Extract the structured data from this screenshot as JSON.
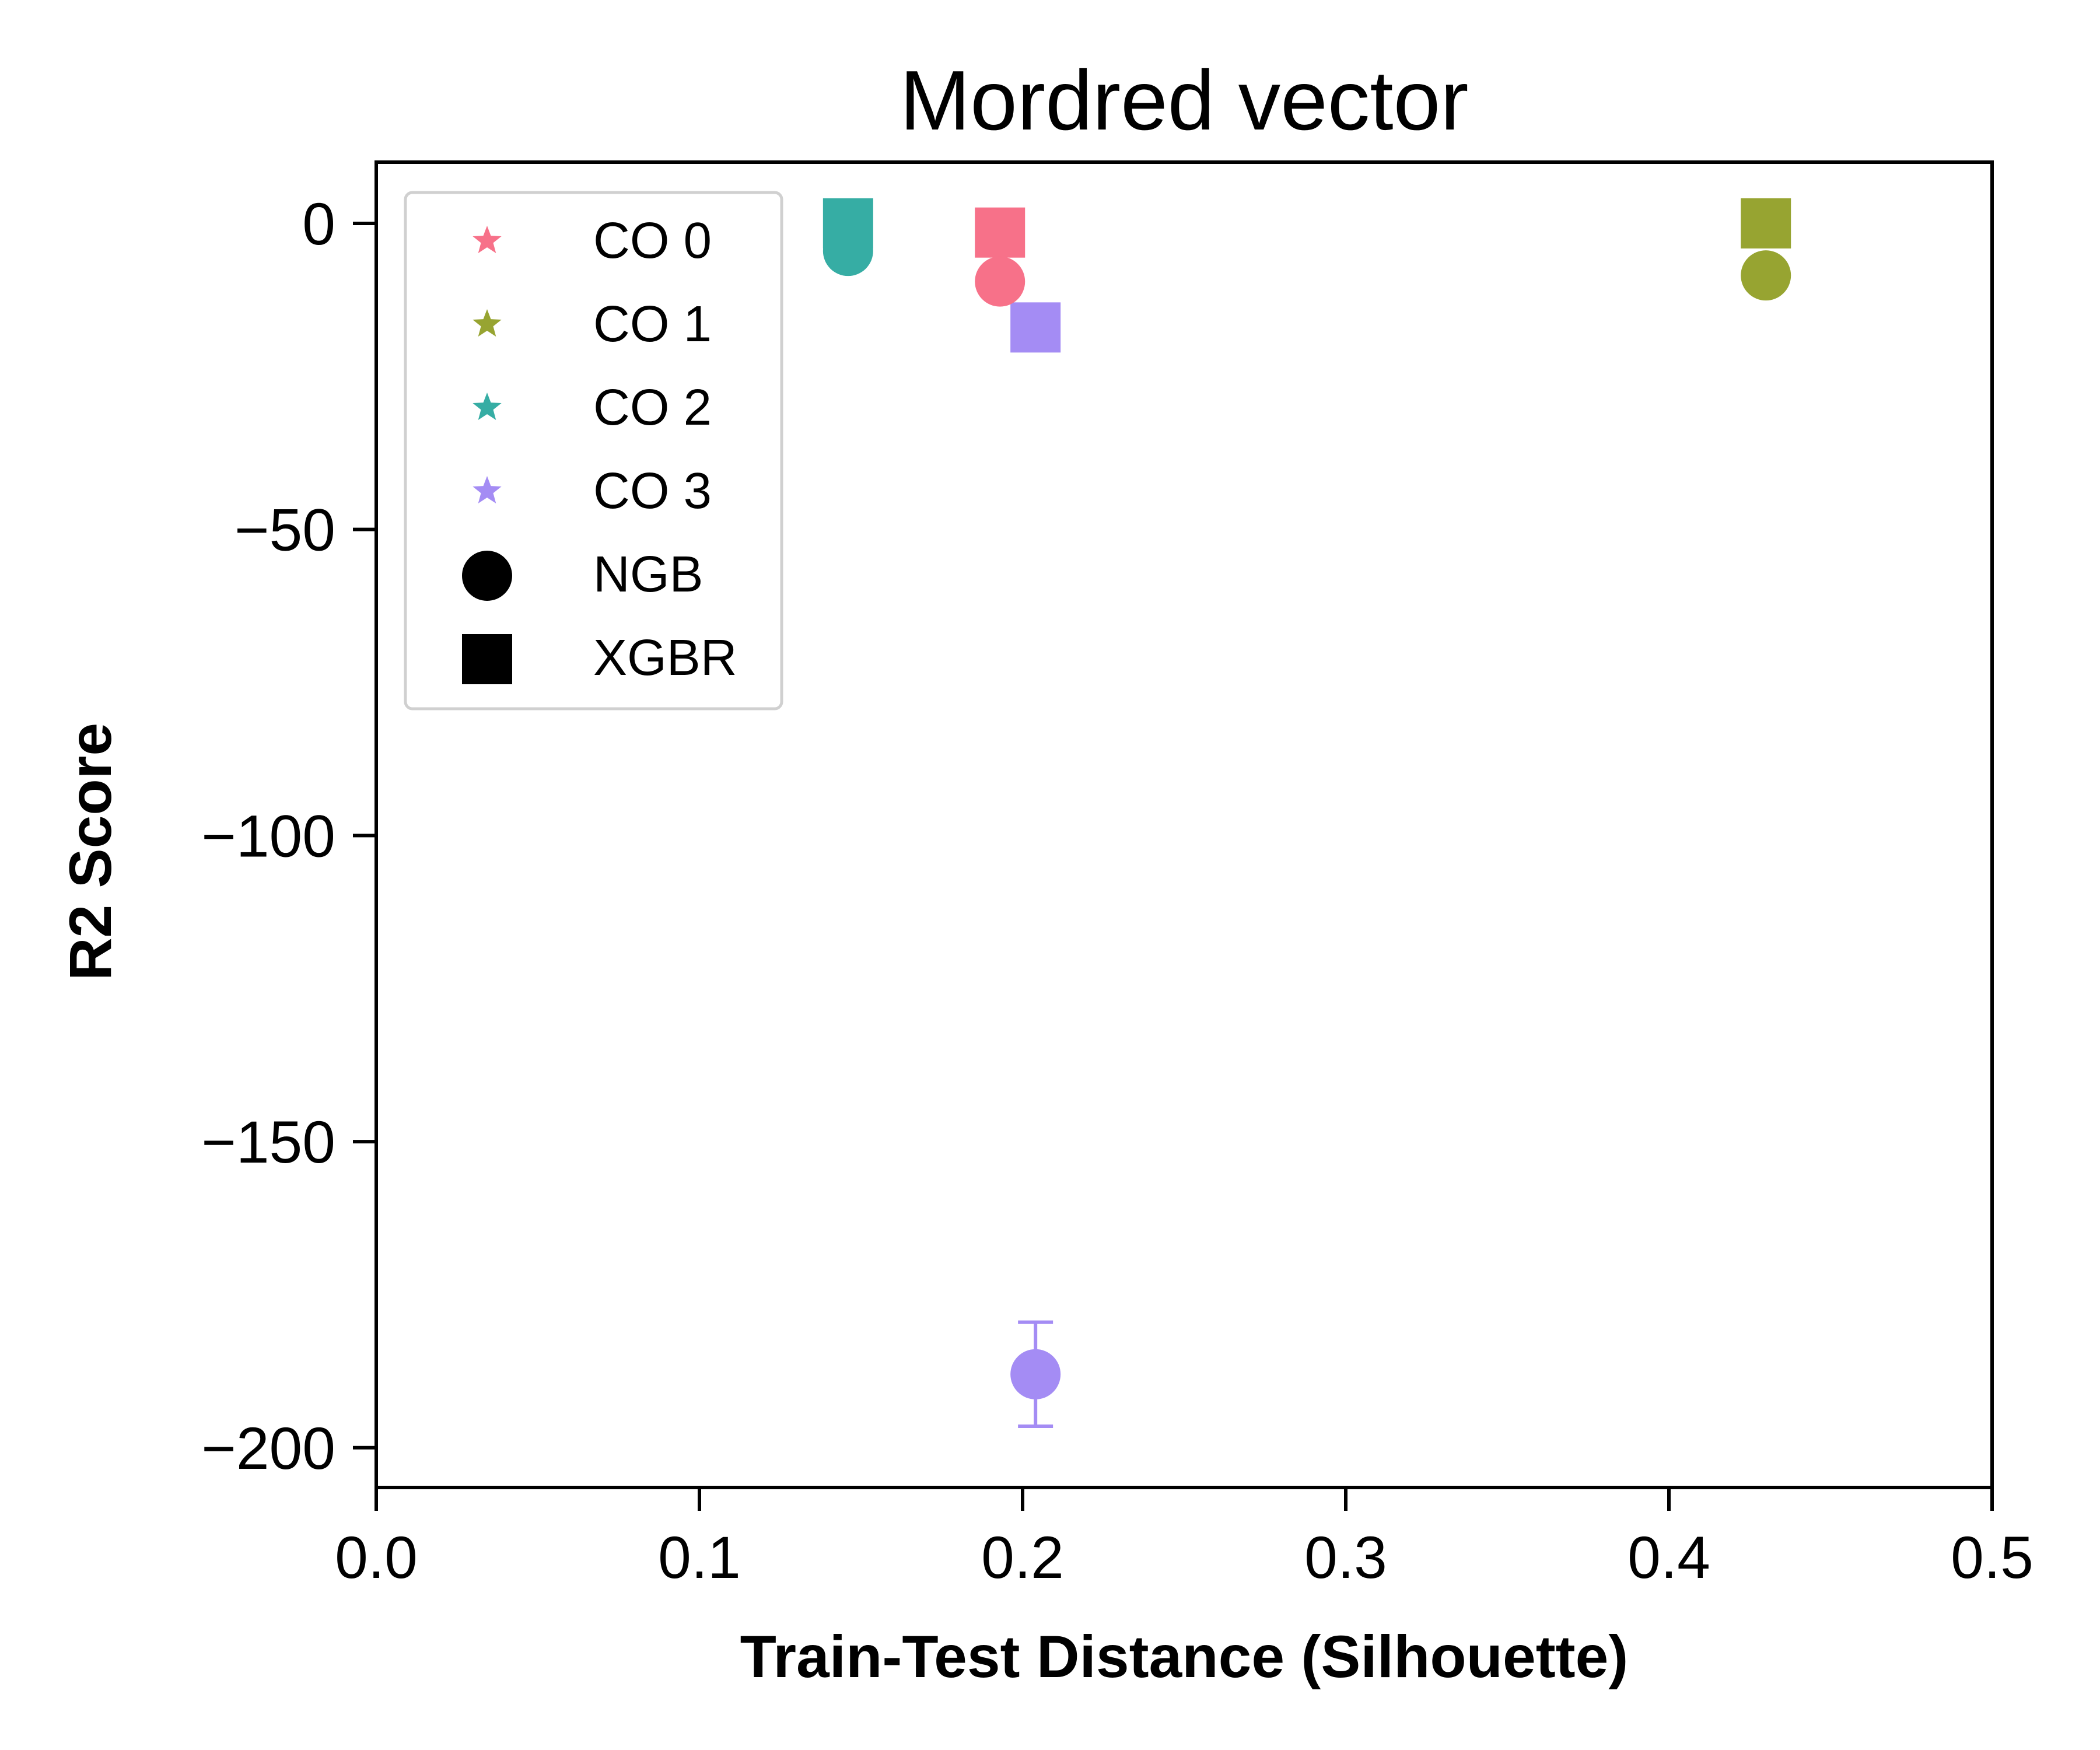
{
  "chart_data": {
    "type": "scatter",
    "title": "Mordred vector",
    "xlabel": "Train-Test Distance (Silhouette)",
    "ylabel": "R2 Score",
    "xlim": [
      0,
      0.5
    ],
    "ylim": [
      -206.5,
      10
    ],
    "xticks": [
      0.0,
      0.1,
      0.2,
      0.3,
      0.4,
      0.5
    ],
    "xtick_labels": [
      "0.0",
      "0.1",
      "0.2",
      "0.3",
      "0.4",
      "0.5"
    ],
    "yticks": [
      0,
      -50,
      -100,
      -150,
      -200
    ],
    "ytick_labels": [
      "0",
      "−50",
      "−100",
      "−150",
      "−200"
    ],
    "grid": false,
    "legend_position": "top-left",
    "colors": {
      "CO 0": "#f77189",
      "CO 1": "#97a431",
      "CO 2": "#36ada4",
      "CO 3": "#a48cf4"
    },
    "legend": [
      {
        "label": "CO 0",
        "marker": "star",
        "color": "#f77189"
      },
      {
        "label": "CO 1",
        "marker": "star",
        "color": "#97a431"
      },
      {
        "label": "CO 2",
        "marker": "star",
        "color": "#36ada4"
      },
      {
        "label": "CO 3",
        "marker": "star",
        "color": "#a48cf4"
      },
      {
        "label": "NGB",
        "marker": "circle",
        "color": "#000000"
      },
      {
        "label": "XGBR",
        "marker": "square",
        "color": "#000000"
      }
    ],
    "points": [
      {
        "group": "CO 0",
        "model": "NGB",
        "marker": "circle",
        "x": 0.193,
        "y": -9.5,
        "color": "#f77189"
      },
      {
        "group": "CO 0",
        "model": "XGBR",
        "marker": "square",
        "x": 0.193,
        "y": -1.5,
        "color": "#f77189"
      },
      {
        "group": "CO 1",
        "model": "NGB",
        "marker": "circle",
        "x": 0.43,
        "y": -8.5,
        "color": "#97a431"
      },
      {
        "group": "CO 1",
        "model": "XGBR",
        "marker": "square",
        "x": 0.43,
        "y": 0.0,
        "color": "#97a431"
      },
      {
        "group": "CO 2",
        "model": "NGB",
        "marker": "circle",
        "x": 0.146,
        "y": -4.5,
        "color": "#36ada4"
      },
      {
        "group": "CO 2",
        "model": "XGBR",
        "marker": "square",
        "x": 0.146,
        "y": 0.0,
        "color": "#36ada4"
      },
      {
        "group": "CO 3",
        "model": "NGB",
        "marker": "circle",
        "x": 0.204,
        "y": -188.0,
        "yerr": 8.5,
        "color": "#a48cf4"
      },
      {
        "group": "CO 3",
        "model": "XGBR",
        "marker": "square",
        "x": 0.204,
        "y": -17.0,
        "color": "#a48cf4"
      }
    ]
  }
}
